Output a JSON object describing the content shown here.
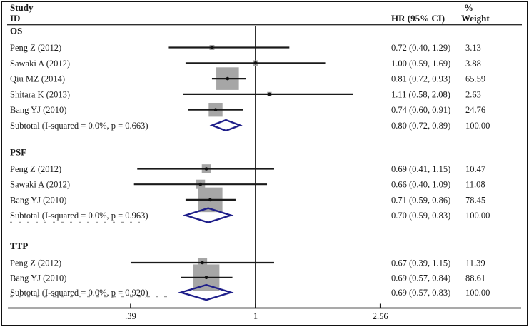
{
  "figure": {
    "header": {
      "col_study_line1": "Study",
      "col_study_line2": "ID",
      "col_hr": "HR (95% CI)",
      "col_weight_line1": "%",
      "col_weight_line2": "Weight"
    }
  },
  "chart_data": {
    "type": "forest",
    "effect_measure": "HR",
    "x_axis": {
      "scale": "log",
      "ticks": [
        0.39,
        1,
        2.56
      ],
      "tick_labels": [
        ".39",
        "1",
        "2.56"
      ],
      "ref_line": 1
    },
    "colors": {
      "square": "#a6a6a6",
      "diamond": "#1f1f8a",
      "line": "#1a1a1a",
      "text": "#1a1a1a"
    },
    "groups": [
      {
        "label": "OS",
        "studies": [
          {
            "label": "Peng Z (2012)",
            "hr": 0.72,
            "ci_low": 0.4,
            "ci_high": 1.29,
            "hr_text": "0.72 (0.40, 1.29)",
            "weight": 3.13,
            "weight_text": "3.13",
            "draw_low": 0.52
          },
          {
            "label": "Sawaki A (2012)",
            "hr": 1.0,
            "ci_low": 0.59,
            "ci_high": 1.69,
            "hr_text": "1.00 (0.59, 1.69)",
            "weight": 3.88,
            "weight_text": "3.88"
          },
          {
            "label": "Qiu MZ (2014)",
            "hr": 0.81,
            "ci_low": 0.72,
            "ci_high": 0.93,
            "hr_text": "0.81 (0.72, 0.93)",
            "weight": 65.59,
            "weight_text": "65.59"
          },
          {
            "label": "Shitara K (2013)",
            "hr": 1.11,
            "ci_low": 0.58,
            "ci_high": 2.08,
            "hr_text": "1.11 (0.58, 2.08)",
            "weight": 2.63,
            "weight_text": "2.63"
          },
          {
            "label": "Bang YJ (2010)",
            "hr": 0.74,
            "ci_low": 0.6,
            "ci_high": 0.91,
            "hr_text": "0.74 (0.60, 0.91)",
            "weight": 24.76,
            "weight_text": "24.76"
          }
        ],
        "subtotal": {
          "label": "Subtotal (I-squared = 0.0%, p = 0.663)",
          "hr": 0.8,
          "ci_low": 0.72,
          "ci_high": 0.89,
          "hr_text": "0.80 (0.72, 0.89)",
          "weight_text": "100.00"
        }
      },
      {
        "label": "PSF",
        "studies": [
          {
            "label": "Peng Z (2012)",
            "hr": 0.69,
            "ci_low": 0.41,
            "ci_high": 1.15,
            "hr_text": "0.69 (0.41, 1.15)",
            "weight": 10.47,
            "weight_text": "10.47"
          },
          {
            "label": "Sawaki A (2012)",
            "hr": 0.66,
            "ci_low": 0.4,
            "ci_high": 1.09,
            "hr_text": "0.66 (0.40, 1.09)",
            "weight": 11.08,
            "weight_text": "11.08"
          },
          {
            "label": "Bang YJ (2010)",
            "hr": 0.71,
            "ci_low": 0.59,
            "ci_high": 0.86,
            "hr_text": "0.71 (0.59, 0.86)",
            "weight": 78.45,
            "weight_text": "78.45"
          }
        ],
        "subtotal": {
          "label": "Subtotal (I-squared = 0.0%, p = 0.963)",
          "hr": 0.7,
          "ci_low": 0.59,
          "ci_high": 0.83,
          "hr_text": "0.70 (0.59, 0.83)",
          "weight_text": "100.00"
        }
      },
      {
        "label": "TTP",
        "studies": [
          {
            "label": "Peng Z (2012)",
            "hr": 0.67,
            "ci_low": 0.39,
            "ci_high": 1.15,
            "hr_text": "0.67 (0.39, 1.15)",
            "weight": 11.39,
            "weight_text": "11.39"
          },
          {
            "label": "Bang YJ (2010)",
            "hr": 0.69,
            "ci_low": 0.57,
            "ci_high": 0.84,
            "hr_text": "0.69 (0.57, 0.84)",
            "weight": 88.61,
            "weight_text": "88.61"
          }
        ],
        "subtotal": {
          "label": "Subtotal (I-squared = 0.0%, p = 0.920)",
          "hr": 0.69,
          "ci_low": 0.57,
          "ci_high": 0.83,
          "hr_text": "0.69 (0.57, 0.83)",
          "weight_text": "100.00"
        }
      }
    ]
  }
}
